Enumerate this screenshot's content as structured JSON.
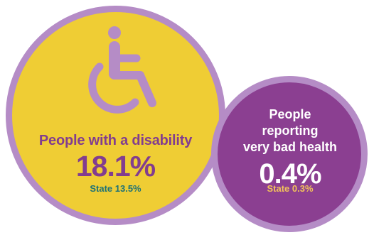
{
  "disability": {
    "icon": "wheelchair-icon",
    "label": "People with a disability",
    "value": "18.1%",
    "state": "State 13.5%",
    "circle_color": "#efcd34",
    "ring_color": "#b58cc6",
    "text_color": "#823d8f",
    "state_color": "#1e7276"
  },
  "bad_health": {
    "label_lines": [
      "People",
      "reporting",
      "very bad health"
    ],
    "value": "0.4%",
    "state": "State 0.3%",
    "circle_color": "#8b3f91",
    "ring_color": "#b58cc6",
    "text_color": "#ffffff",
    "state_color": "#f2c25a"
  }
}
